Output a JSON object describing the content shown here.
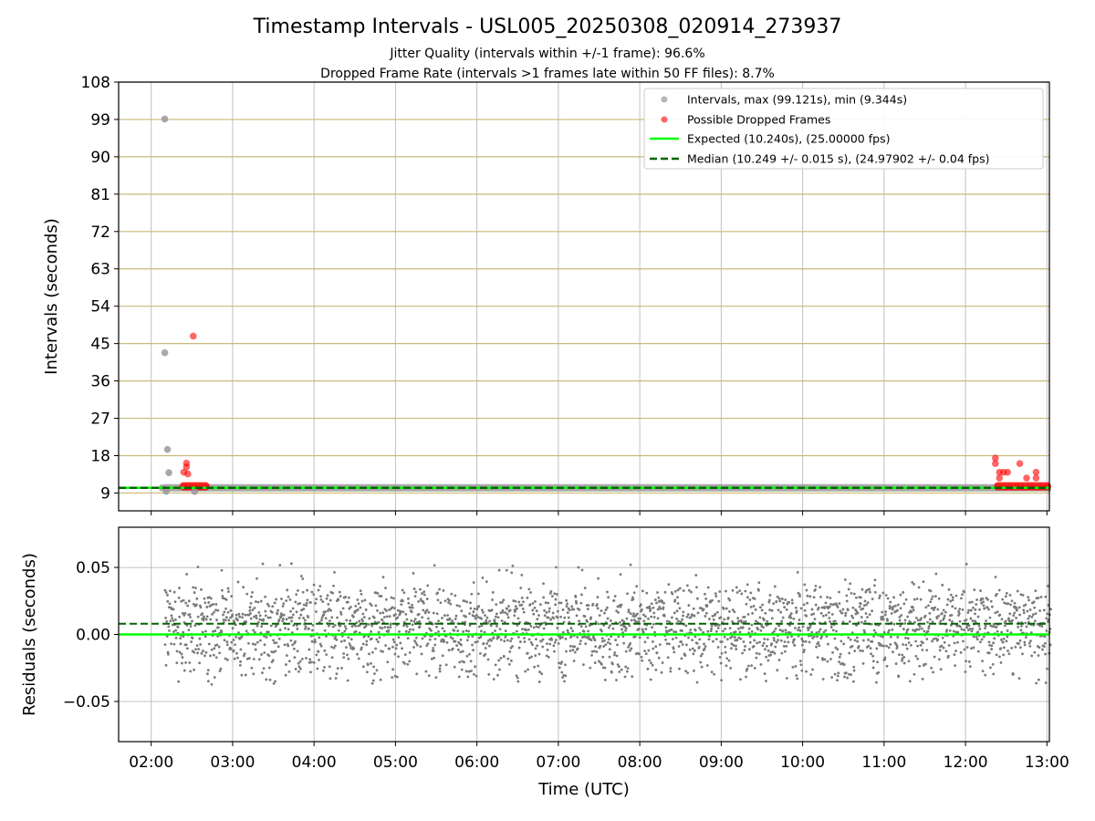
{
  "figure": {
    "title": "Timestamp Intervals - USL005_20250308_020914_273937",
    "subtitle_line1": "Jitter Quality (intervals within +/-1 frame): 96.6%",
    "subtitle_line2": "Dropped Frame Rate (intervals >1 frames late within 50 FF files): 8.7%"
  },
  "chart_data": [
    {
      "type": "scatter",
      "panel": "intervals",
      "ylabel": "Intervals (seconds)",
      "xlabel": "",
      "y_ticks": [
        9,
        18,
        27,
        36,
        45,
        54,
        63,
        72,
        81,
        90,
        99,
        108
      ],
      "y_tick_labels": [
        "9",
        "18",
        "27",
        "36",
        "45",
        "54",
        "63",
        "72",
        "81",
        "90",
        "99",
        "108"
      ],
      "ylim": [
        4.7,
        108
      ],
      "xlim_hours": [
        1.6,
        13.03
      ],
      "grid": true,
      "legend_position": "upper-right",
      "legend": [
        {
          "label": "Intervals, max (99.121s), min (9.344s)",
          "marker": "circle",
          "color": "#999999"
        },
        {
          "label": "Possible Dropped Frames",
          "marker": "circle",
          "color": "#ff0000"
        },
        {
          "label": "Expected (10.240s), (25.00000 fps)",
          "line": "solid",
          "color": "#00ff00"
        },
        {
          "label": "Median (10.249 +/- 0.015 s), (24.97902 +/- 0.04 fps)",
          "line": "dashed",
          "color": "#006400"
        }
      ],
      "expected_line": 10.24,
      "median_line": 10.249,
      "series": [
        {
          "name": "Intervals",
          "points": [
            {
              "x": "02:10",
              "y": 99.121
            },
            {
              "x": "02:10",
              "y": 42.8
            },
            {
              "x": "02:12",
              "y": 19.5
            },
            {
              "x": "02:13",
              "y": 13.9
            },
            {
              "x": "02:11",
              "y": 9.4
            },
            {
              "x": "02:32",
              "y": 9.344
            },
            {
              "x": "02:08",
              "y": 10.24
            }
          ],
          "continuous_band": {
            "x_from": "02:09",
            "x_to": "13:03",
            "y": 10.25
          }
        },
        {
          "name": "Possible Dropped Frames",
          "points": [
            {
              "x": "02:31",
              "y": 46.8
            },
            {
              "x": "02:26",
              "y": 16.2
            },
            {
              "x": "02:26",
              "y": 15.3
            },
            {
              "x": "02:24",
              "y": 14.0
            },
            {
              "x": "02:27",
              "y": 13.6
            },
            {
              "x": "12:22",
              "y": 17.4
            },
            {
              "x": "12:22",
              "y": 16.1
            },
            {
              "x": "12:25",
              "y": 14.0
            },
            {
              "x": "12:25",
              "y": 12.6
            },
            {
              "x": "12:28",
              "y": 14.0
            },
            {
              "x": "12:31",
              "y": 14.0
            },
            {
              "x": "12:40",
              "y": 16.1
            },
            {
              "x": "12:45",
              "y": 12.6
            },
            {
              "x": "12:52",
              "y": 14.0
            },
            {
              "x": "12:52",
              "y": 12.6
            }
          ],
          "dense_clusters": [
            {
              "x_from": "02:21",
              "x_to": "02:43",
              "y": 10.6
            },
            {
              "x_from": "12:21",
              "x_to": "13:03",
              "y": 10.6
            }
          ]
        }
      ]
    },
    {
      "type": "scatter",
      "panel": "residuals",
      "ylabel": "Residuals (seconds)",
      "xlabel": "Time (UTC)",
      "x_ticks": [
        "02:00",
        "03:00",
        "04:00",
        "05:00",
        "06:00",
        "07:00",
        "08:00",
        "09:00",
        "10:00",
        "11:00",
        "12:00",
        "13:00"
      ],
      "y_ticks": [
        -0.05,
        0.0,
        0.05
      ],
      "y_tick_labels": [
        "−0.05",
        "0.00",
        "0.05"
      ],
      "ylim": [
        -0.08,
        0.08
      ],
      "xlim_hours": [
        1.6,
        13.03
      ],
      "grid": true,
      "expected_line": 0.0,
      "median_line": 0.008,
      "series": [
        {
          "name": "Residuals",
          "x_from": "02:10",
          "x_to": "13:03",
          "levels": [
            0.02,
            0.0,
            -0.02
          ],
          "spread": 0.02,
          "range": [
            -0.04,
            0.054
          ]
        }
      ]
    }
  ],
  "colors": {
    "axes": "#000000",
    "grid_vertical": "#b0b0b0",
    "grid_horizontal_top": "#c9b97a",
    "grid_horizontal_bottom": "#b0b0b0",
    "intervals": "#999999",
    "dropped": "#ff0000",
    "expected": "#00ff00",
    "median": "#006400",
    "residuals": "#7a7a7a"
  }
}
